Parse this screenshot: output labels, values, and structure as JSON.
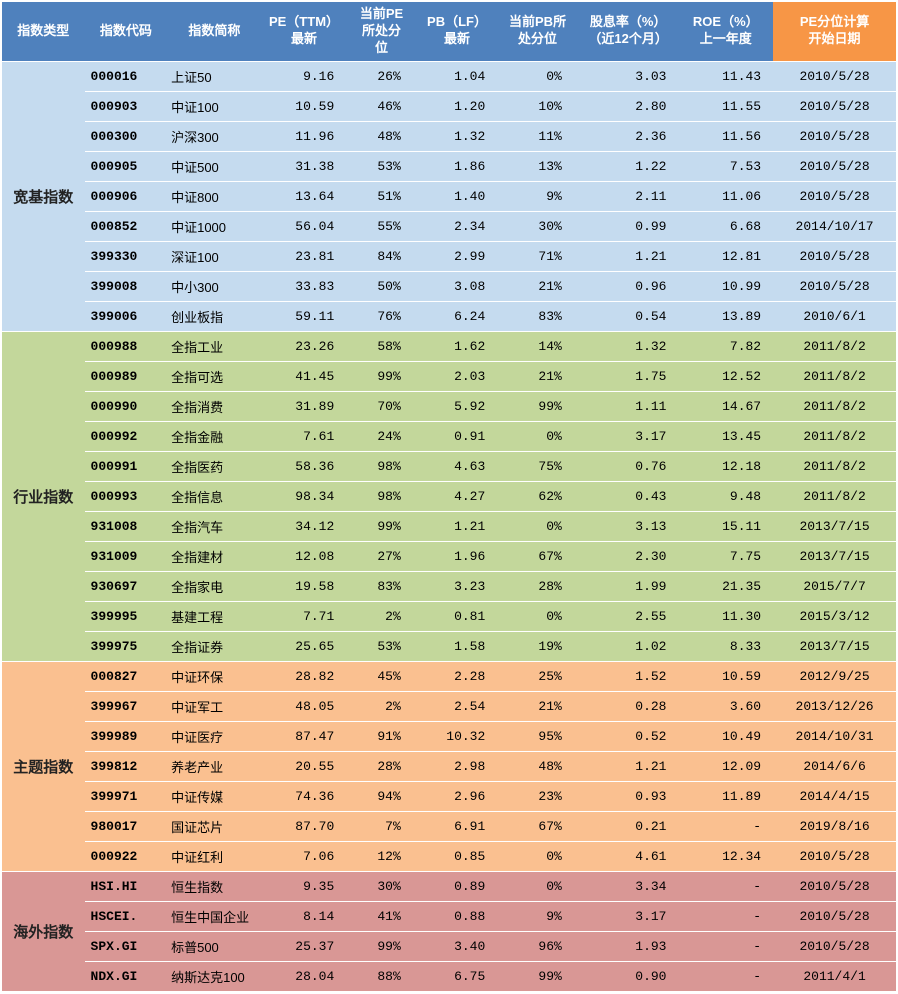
{
  "columns": [
    {
      "key": "category",
      "label": "指数类型"
    },
    {
      "key": "code",
      "label": "指数代码"
    },
    {
      "key": "name",
      "label": "指数简称"
    },
    {
      "key": "pe",
      "label": "PE（TTM）\n最新"
    },
    {
      "key": "pe_pct",
      "label": "当前PE\n所处分\n位"
    },
    {
      "key": "pb",
      "label": "PB（LF）\n最新"
    },
    {
      "key": "pb_pct",
      "label": "当前PB所\n处分位"
    },
    {
      "key": "div",
      "label": "股息率（%）\n（近12个月）"
    },
    {
      "key": "roe",
      "label": "ROE（%）\n上一年度"
    },
    {
      "key": "date",
      "label": "PE分位计算\n开始日期"
    }
  ],
  "header_colors": {
    "main": "#4f81bd",
    "date": "#f79646",
    "text": "#ffffff"
  },
  "groups": [
    {
      "category": "宽基指数",
      "bg": "#c5dbef",
      "rows": [
        {
          "code": "000016",
          "name": "上证50",
          "pe": "9.16",
          "pe_pct": "26%",
          "pb": "1.04",
          "pb_pct": "0%",
          "div": "3.03",
          "roe": "11.43",
          "date": "2010/5/28"
        },
        {
          "code": "000903",
          "name": "中证100",
          "pe": "10.59",
          "pe_pct": "46%",
          "pb": "1.20",
          "pb_pct": "10%",
          "div": "2.80",
          "roe": "11.55",
          "date": "2010/5/28"
        },
        {
          "code": "000300",
          "name": "沪深300",
          "pe": "11.96",
          "pe_pct": "48%",
          "pb": "1.32",
          "pb_pct": "11%",
          "div": "2.36",
          "roe": "11.56",
          "date": "2010/5/28"
        },
        {
          "code": "000905",
          "name": "中证500",
          "pe": "31.38",
          "pe_pct": "53%",
          "pb": "1.86",
          "pb_pct": "13%",
          "div": "1.22",
          "roe": "7.53",
          "date": "2010/5/28"
        },
        {
          "code": "000906",
          "name": "中证800",
          "pe": "13.64",
          "pe_pct": "51%",
          "pb": "1.40",
          "pb_pct": "9%",
          "div": "2.11",
          "roe": "11.06",
          "date": "2010/5/28"
        },
        {
          "code": "000852",
          "name": "中证1000",
          "pe": "56.04",
          "pe_pct": "55%",
          "pb": "2.34",
          "pb_pct": "30%",
          "div": "0.99",
          "roe": "6.68",
          "date": "2014/10/17"
        },
        {
          "code": "399330",
          "name": "深证100",
          "pe": "23.81",
          "pe_pct": "84%",
          "pb": "2.99",
          "pb_pct": "71%",
          "div": "1.21",
          "roe": "12.81",
          "date": "2010/5/28"
        },
        {
          "code": "399008",
          "name": "中小300",
          "pe": "33.83",
          "pe_pct": "50%",
          "pb": "3.08",
          "pb_pct": "21%",
          "div": "0.96",
          "roe": "10.99",
          "date": "2010/5/28"
        },
        {
          "code": "399006",
          "name": "创业板指",
          "pe": "59.11",
          "pe_pct": "76%",
          "pb": "6.24",
          "pb_pct": "83%",
          "div": "0.54",
          "roe": "13.89",
          "date": "2010/6/1"
        }
      ]
    },
    {
      "category": "行业指数",
      "bg": "#c3d79b",
      "rows": [
        {
          "code": "000988",
          "name": "全指工业",
          "pe": "23.26",
          "pe_pct": "58%",
          "pb": "1.62",
          "pb_pct": "14%",
          "div": "1.32",
          "roe": "7.82",
          "date": "2011/8/2"
        },
        {
          "code": "000989",
          "name": "全指可选",
          "pe": "41.45",
          "pe_pct": "99%",
          "pb": "2.03",
          "pb_pct": "21%",
          "div": "1.75",
          "roe": "12.52",
          "date": "2011/8/2"
        },
        {
          "code": "000990",
          "name": "全指消费",
          "pe": "31.89",
          "pe_pct": "70%",
          "pb": "5.92",
          "pb_pct": "99%",
          "div": "1.11",
          "roe": "14.67",
          "date": "2011/8/2"
        },
        {
          "code": "000992",
          "name": "全指金融",
          "pe": "7.61",
          "pe_pct": "24%",
          "pb": "0.91",
          "pb_pct": "0%",
          "div": "3.17",
          "roe": "13.45",
          "date": "2011/8/2"
        },
        {
          "code": "000991",
          "name": "全指医药",
          "pe": "58.36",
          "pe_pct": "98%",
          "pb": "4.63",
          "pb_pct": "75%",
          "div": "0.76",
          "roe": "12.18",
          "date": "2011/8/2"
        },
        {
          "code": "000993",
          "name": "全指信息",
          "pe": "98.34",
          "pe_pct": "98%",
          "pb": "4.27",
          "pb_pct": "62%",
          "div": "0.43",
          "roe": "9.48",
          "date": "2011/8/2"
        },
        {
          "code": "931008",
          "name": "全指汽车",
          "pe": "34.12",
          "pe_pct": "99%",
          "pb": "1.21",
          "pb_pct": "0%",
          "div": "3.13",
          "roe": "15.11",
          "date": "2013/7/15"
        },
        {
          "code": "931009",
          "name": "全指建材",
          "pe": "12.08",
          "pe_pct": "27%",
          "pb": "1.96",
          "pb_pct": "67%",
          "div": "2.30",
          "roe": "7.75",
          "date": "2013/7/15"
        },
        {
          "code": "930697",
          "name": "全指家电",
          "pe": "19.58",
          "pe_pct": "83%",
          "pb": "3.23",
          "pb_pct": "28%",
          "div": "1.99",
          "roe": "21.35",
          "date": "2015/7/7"
        },
        {
          "code": "399995",
          "name": "基建工程",
          "pe": "7.71",
          "pe_pct": "2%",
          "pb": "0.81",
          "pb_pct": "0%",
          "div": "2.55",
          "roe": "11.30",
          "date": "2015/3/12"
        },
        {
          "code": "399975",
          "name": "全指证券",
          "pe": "25.65",
          "pe_pct": "53%",
          "pb": "1.58",
          "pb_pct": "19%",
          "div": "1.02",
          "roe": "8.33",
          "date": "2013/7/15"
        }
      ]
    },
    {
      "category": "主题指数",
      "bg": "#fac090",
      "rows": [
        {
          "code": "000827",
          "name": "中证环保",
          "pe": "28.82",
          "pe_pct": "45%",
          "pb": "2.28",
          "pb_pct": "25%",
          "div": "1.52",
          "roe": "10.59",
          "date": "2012/9/25"
        },
        {
          "code": "399967",
          "name": "中证军工",
          "pe": "48.05",
          "pe_pct": "2%",
          "pb": "2.54",
          "pb_pct": "21%",
          "div": "0.28",
          "roe": "3.60",
          "date": "2013/12/26"
        },
        {
          "code": "399989",
          "name": "中证医疗",
          "pe": "87.47",
          "pe_pct": "91%",
          "pb": "10.32",
          "pb_pct": "95%",
          "div": "0.52",
          "roe": "10.49",
          "date": "2014/10/31"
        },
        {
          "code": "399812",
          "name": "养老产业",
          "pe": "20.55",
          "pe_pct": "28%",
          "pb": "2.98",
          "pb_pct": "48%",
          "div": "1.21",
          "roe": "12.09",
          "date": "2014/6/6"
        },
        {
          "code": "399971",
          "name": "中证传媒",
          "pe": "74.36",
          "pe_pct": "94%",
          "pb": "2.96",
          "pb_pct": "23%",
          "div": "0.93",
          "roe": "11.89",
          "date": "2014/4/15"
        },
        {
          "code": "980017",
          "name": "国证芯片",
          "pe": "87.70",
          "pe_pct": "7%",
          "pb": "6.91",
          "pb_pct": "67%",
          "div": "0.21",
          "roe": "-",
          "date": "2019/8/16"
        },
        {
          "code": "000922",
          "name": "中证红利",
          "pe": "7.06",
          "pe_pct": "12%",
          "pb": "0.85",
          "pb_pct": "0%",
          "div": "4.61",
          "roe": "12.34",
          "date": "2010/5/28"
        }
      ]
    },
    {
      "category": "海外指数",
      "bg": "#d99795",
      "rows": [
        {
          "code": "HSI.HI",
          "name": "恒生指数",
          "pe": "9.35",
          "pe_pct": "30%",
          "pb": "0.89",
          "pb_pct": "0%",
          "div": "3.34",
          "roe": "-",
          "date": "2010/5/28"
        },
        {
          "code": "HSCEI.",
          "name": "恒生中国企业",
          "pe": "8.14",
          "pe_pct": "41%",
          "pb": "0.88",
          "pb_pct": "9%",
          "div": "3.17",
          "roe": "-",
          "date": "2010/5/28"
        },
        {
          "code": "SPX.GI",
          "name": "标普500",
          "pe": "25.37",
          "pe_pct": "99%",
          "pb": "3.40",
          "pb_pct": "96%",
          "div": "1.93",
          "roe": "-",
          "date": "2010/5/28"
        },
        {
          "code": "NDX.GI",
          "name": "纳斯达克100",
          "pe": "28.04",
          "pe_pct": "88%",
          "pb": "6.75",
          "pb_pct": "99%",
          "div": "0.90",
          "roe": "-",
          "date": "2011/4/1"
        }
      ]
    }
  ]
}
